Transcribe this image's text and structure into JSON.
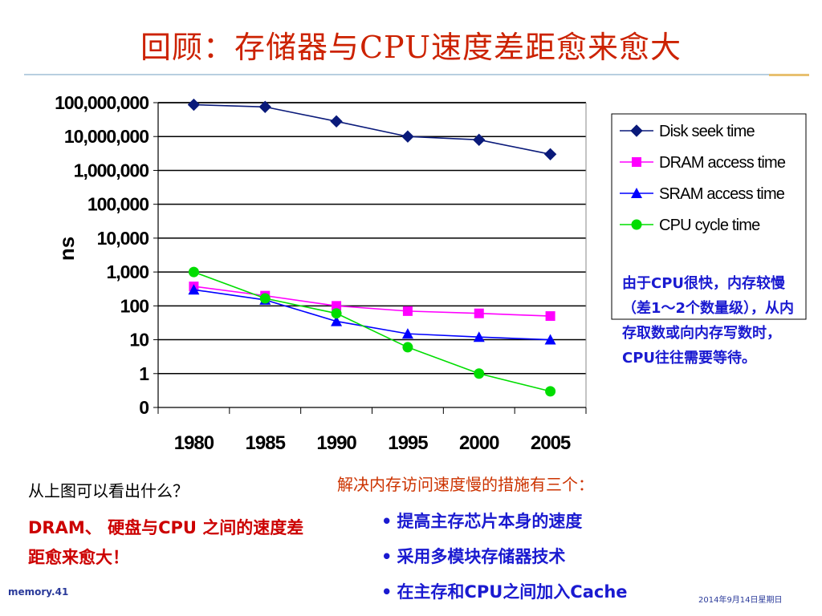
{
  "title": "回顾：存储器与CPU速度差距愈来愈大",
  "chart_data": {
    "type": "line",
    "ylabel": "ns",
    "yscale": "log",
    "ylim": [
      0.1,
      100000000
    ],
    "x": [
      1980,
      1985,
      1990,
      1995,
      2000,
      2005
    ],
    "categories": [
      "1980",
      "1985",
      "1990",
      "1995",
      "2000",
      "2005"
    ],
    "ytick_values": [
      0.1,
      1,
      10,
      100,
      1000,
      10000,
      100000,
      1000000,
      10000000,
      100000000
    ],
    "ytick_labels": [
      "0",
      "1",
      "10",
      "100",
      "1,000",
      "10,000",
      "100,000",
      "1,000,000",
      "10,000,000",
      "100,000,000"
    ],
    "grid": true,
    "legend_position": "top-right",
    "series": [
      {
        "name": "Disk seek time",
        "color": "#0a1a7a",
        "marker": "diamond",
        "values": [
          87000000,
          75000000,
          28000000,
          10000000,
          8000000,
          3000000
        ]
      },
      {
        "name": "DRAM access time",
        "color": "#ff00ff",
        "marker": "square",
        "values": [
          375,
          200,
          100,
          70,
          60,
          50
        ]
      },
      {
        "name": "SRAM access time",
        "color": "#0000ff",
        "marker": "triangle",
        "values": [
          300,
          150,
          35,
          15,
          12,
          10
        ]
      },
      {
        "name": "CPU cycle time",
        "color": "#00dd00",
        "marker": "circle",
        "values": [
          1000,
          166,
          60,
          6,
          1,
          0.3
        ]
      }
    ]
  },
  "annotation": "由于CPU很快，内存较慢（差1～2个数量级），从内存取数或向内存写数时，CPU往往需要等待。",
  "question": "从上图可以看出什么？",
  "answer": "DRAM、 硬盘与CPU 之间的速度差距愈来愈大！",
  "solutions": {
    "title": "解决内存访问速度慢的措施有三个：",
    "items": [
      "提高主存芯片本身的速度",
      "采用多模块存储器技术",
      "在主存和CPU之间加入Cache"
    ]
  },
  "footer": {
    "left": "memory.41",
    "right": "2014年9月14日星期日"
  }
}
